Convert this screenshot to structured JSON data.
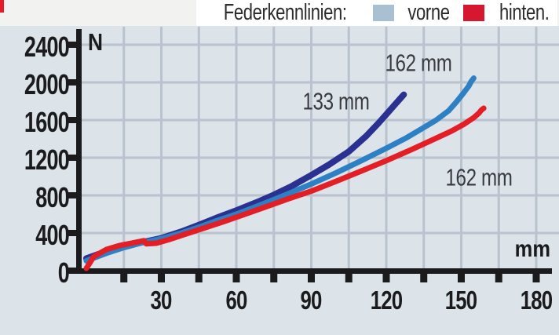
{
  "page": {
    "background_color": "#dce3e9",
    "top_strip_color": "#f2f2f0",
    "corner_mark_color": "#e8192c"
  },
  "legend": {
    "title": "Federkennlinien:",
    "items": [
      {
        "label": "vorne",
        "color": "#a9c0d3"
      },
      {
        "label": "hinten.",
        "color": "#d5182f"
      }
    ]
  },
  "chart_data": {
    "type": "line",
    "title": "Federkennlinien (spring characteristic curves)",
    "xlabel": "mm",
    "ylabel": "N",
    "xlim": [
      0,
      186
    ],
    "ylim": [
      0,
      2560
    ],
    "grid": true,
    "grid_color": "#b9c3cd",
    "axis_color": "#1b1b1d",
    "x_ticks_all": [
      15,
      30,
      45,
      60,
      75,
      90,
      105,
      120,
      135,
      150,
      165,
      180
    ],
    "x_ticks_labeled": [
      30,
      60,
      90,
      120,
      150,
      180
    ],
    "y_ticks": [
      0,
      400,
      800,
      1200,
      1600,
      2000,
      2400
    ],
    "series": [
      {
        "name": "vorne 133 mm",
        "legend_group": "vorne",
        "color": "#2b3191",
        "stroke_width": 8,
        "points": [
          [
            0,
            130
          ],
          [
            8,
            205
          ],
          [
            15,
            255
          ],
          [
            22,
            300
          ],
          [
            30,
            345
          ],
          [
            38,
            415
          ],
          [
            45,
            485
          ],
          [
            52,
            560
          ],
          [
            60,
            640
          ],
          [
            68,
            725
          ],
          [
            75,
            805
          ],
          [
            82,
            895
          ],
          [
            90,
            1015
          ],
          [
            97,
            1125
          ],
          [
            105,
            1265
          ],
          [
            112,
            1430
          ],
          [
            117,
            1570
          ],
          [
            121,
            1690
          ],
          [
            124,
            1780
          ],
          [
            126,
            1840
          ],
          [
            127,
            1870
          ]
        ]
      },
      {
        "name": "vorne 162 mm",
        "legend_group": "vorne",
        "color": "#2e80c4",
        "stroke_width": 7,
        "points": [
          [
            0,
            105
          ],
          [
            8,
            185
          ],
          [
            15,
            245
          ],
          [
            22,
            295
          ],
          [
            30,
            340
          ],
          [
            38,
            400
          ],
          [
            45,
            462
          ],
          [
            52,
            528
          ],
          [
            60,
            600
          ],
          [
            70,
            702
          ],
          [
            80,
            808
          ],
          [
            90,
            920
          ],
          [
            100,
            1040
          ],
          [
            110,
            1168
          ],
          [
            120,
            1300
          ],
          [
            128,
            1410
          ],
          [
            135,
            1520
          ],
          [
            140,
            1600
          ],
          [
            145,
            1700
          ],
          [
            148,
            1790
          ],
          [
            151,
            1890
          ],
          [
            153,
            1960
          ],
          [
            154,
            2010
          ],
          [
            155,
            2045
          ]
        ]
      },
      {
        "name": "hinten 162 mm",
        "legend_group": "hinten",
        "color": "#e31e25",
        "stroke_width": 7,
        "points": [
          [
            0,
            25
          ],
          [
            3,
            150
          ],
          [
            8,
            225
          ],
          [
            13,
            265
          ],
          [
            18,
            292
          ],
          [
            23,
            318
          ],
          [
            24,
            285
          ],
          [
            28,
            292
          ],
          [
            33,
            330
          ],
          [
            40,
            392
          ],
          [
            47,
            452
          ],
          [
            55,
            522
          ],
          [
            63,
            595
          ],
          [
            72,
            680
          ],
          [
            81,
            765
          ],
          [
            90,
            845
          ],
          [
            100,
            950
          ],
          [
            110,
            1058
          ],
          [
            120,
            1168
          ],
          [
            130,
            1285
          ],
          [
            139,
            1395
          ],
          [
            146,
            1482
          ],
          [
            151,
            1555
          ],
          [
            155,
            1625
          ],
          [
            157,
            1672
          ],
          [
            158,
            1705
          ],
          [
            159,
            1725
          ]
        ]
      }
    ],
    "annotations": [
      {
        "text": "162 mm",
        "series": "vorne 162 mm",
        "mm": 133,
        "n": 2210
      },
      {
        "text": "133 mm",
        "series": "vorne 133 mm",
        "mm": 100,
        "n": 1800
      },
      {
        "text": "162 mm",
        "series": "hinten 162 mm",
        "mm": 157,
        "n": 990
      }
    ]
  }
}
